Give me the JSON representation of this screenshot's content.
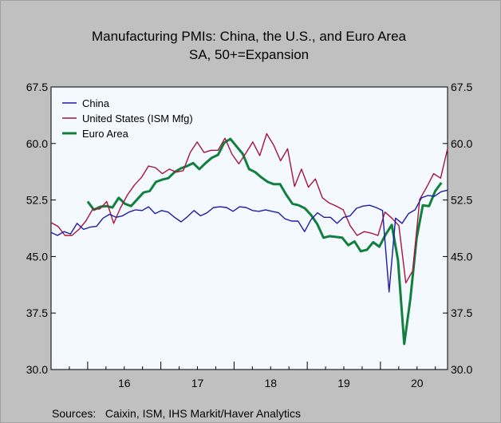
{
  "chart_data": {
    "type": "line",
    "title": "Manufacturing PMIs: China, the U.S., and Euro Area",
    "subtitle": "SA, 50+=Expansion",
    "xlabel": "",
    "ylabel": "",
    "source": "Sources:   Caixin, ISM, IHS Markit/Haver Analytics",
    "ylim": [
      30.0,
      67.5
    ],
    "yticks": [
      "30.0",
      "37.5",
      "45.0",
      "52.5",
      "60.0",
      "67.5"
    ],
    "x_start": 2015.5,
    "x_end": 2020.9167,
    "xtick_labels": [
      "16",
      "17",
      "18",
      "19",
      "20"
    ],
    "grid": false,
    "legend_position": "top-left",
    "series": [
      {
        "name": "China",
        "color": "#1c1ca8",
        "x_start": 2015.5,
        "values": [
          48.2,
          47.8,
          48.3,
          48.0,
          49.4,
          48.6,
          48.9,
          49.0,
          50.1,
          50.6,
          50.2,
          50.4,
          50.9,
          51.2,
          51.1,
          51.6,
          50.7,
          51.1,
          50.9,
          50.2,
          49.6,
          50.3,
          51.1,
          50.4,
          50.8,
          51.5,
          51.6,
          51.5,
          51.0,
          51.6,
          51.5,
          51.1,
          51.0,
          51.2,
          51.0,
          50.8,
          50.0,
          49.7,
          49.7,
          48.3,
          49.9,
          50.8,
          50.2,
          50.2,
          49.4,
          50.2,
          50.4,
          51.4,
          51.7,
          51.8,
          51.5,
          51.1,
          40.3,
          50.1,
          49.4,
          50.7,
          51.2,
          52.8,
          53.1,
          53.0,
          53.6,
          53.8
        ],
        "x_end": 2020.9167
      },
      {
        "name": "United States (ISM Mfg)",
        "color": "#a8143c",
        "x_start": 2015.5,
        "values": [
          49.5,
          49.0,
          47.8,
          47.8,
          48.6,
          49.7,
          51.3,
          51.3,
          52.3,
          49.4,
          51.5,
          53.2,
          54.5,
          55.5,
          57.0,
          56.8,
          56.0,
          56.6,
          56.2,
          56.4,
          58.8,
          60.2,
          58.8,
          59.1,
          59.1,
          60.7,
          58.6,
          57.3,
          58.7,
          60.2,
          58.4,
          61.3,
          59.8,
          57.7,
          59.3,
          54.3,
          56.6,
          54.2,
          55.3,
          52.8,
          52.1,
          51.7,
          51.2,
          49.1,
          47.8,
          48.3,
          48.1,
          47.8,
          50.9,
          50.1,
          49.1,
          41.5,
          43.1,
          52.6,
          54.2,
          56.0,
          55.4,
          59.3
        ],
        "x_end": 2020.9167
      },
      {
        "name": "Euro Area",
        "color": "#10803c",
        "x_start": 2016.0,
        "values": [
          52.3,
          51.2,
          51.6,
          51.7,
          51.5,
          52.8,
          52.0,
          51.7,
          52.6,
          53.5,
          53.7,
          54.9,
          55.2,
          55.4,
          56.2,
          56.7,
          57.0,
          57.4,
          56.6,
          57.4,
          58.1,
          58.5,
          60.1,
          60.6,
          59.6,
          58.6,
          56.6,
          56.2,
          55.5,
          54.9,
          54.6,
          54.6,
          53.2,
          52.0,
          51.8,
          51.4,
          50.5,
          49.3,
          47.5,
          47.7,
          47.6,
          47.5,
          46.5,
          47.0,
          45.7,
          45.9,
          46.9,
          46.3,
          47.9,
          49.2,
          44.5,
          33.4,
          39.4,
          47.4,
          51.8,
          51.7,
          53.7,
          54.8
        ],
        "x_end": 2020.8333
      }
    ]
  }
}
